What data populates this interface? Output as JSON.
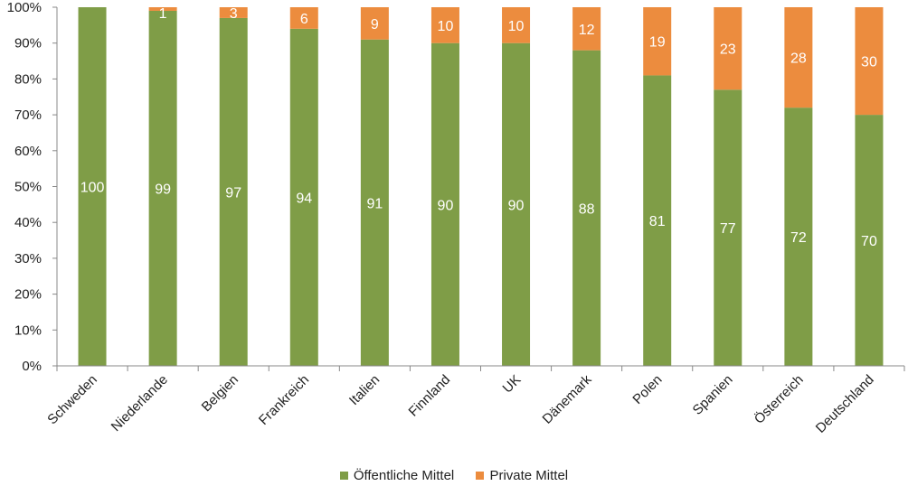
{
  "chart_data": {
    "type": "bar",
    "stacked": true,
    "categories": [
      "Schweden",
      "Niederlande",
      "Belgien",
      "Frankreich",
      "Italien",
      "Finnland",
      "UK",
      "Dänemark",
      "Polen",
      "Spanien",
      "Österreich",
      "Deutschland"
    ],
    "series": [
      {
        "name": "Öffentliche Mittel",
        "color": "#7f9d47",
        "values": [
          100,
          99,
          97,
          94,
          91,
          90,
          90,
          88,
          81,
          77,
          72,
          70
        ]
      },
      {
        "name": "Private Mittel",
        "color": "#ec8c3e",
        "values": [
          0,
          1,
          3,
          6,
          9,
          10,
          10,
          12,
          19,
          23,
          28,
          30
        ]
      }
    ],
    "ylim": [
      0,
      100
    ],
    "yticks": [
      "0%",
      "10%",
      "20%",
      "30%",
      "40%",
      "50%",
      "60%",
      "70%",
      "80%",
      "90%",
      "100%"
    ],
    "legend_position": "bottom",
    "grid": false
  }
}
